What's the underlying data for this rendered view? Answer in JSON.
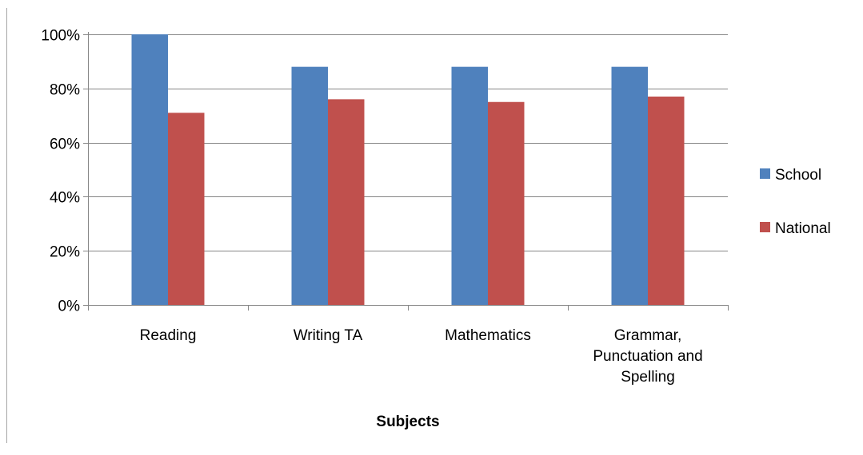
{
  "chart_data": {
    "type": "bar",
    "categories": [
      [
        "Reading"
      ],
      [
        "Writing TA"
      ],
      [
        "Mathematics"
      ],
      [
        "Grammar,",
        "Punctuation and",
        "Spelling"
      ]
    ],
    "series": [
      {
        "name": "School",
        "color": "#4F81BD",
        "values": [
          100,
          88,
          88,
          88
        ]
      },
      {
        "name": "National",
        "color": "#C0504D",
        "values": [
          71,
          76,
          75,
          77
        ]
      }
    ],
    "xlabel": "Subjects",
    "ylabel": "",
    "ylim": [
      0,
      100
    ],
    "yticks": [
      "0%",
      "20%",
      "40%",
      "60%",
      "80%",
      "100%"
    ],
    "grid": true,
    "legend": "right"
  }
}
